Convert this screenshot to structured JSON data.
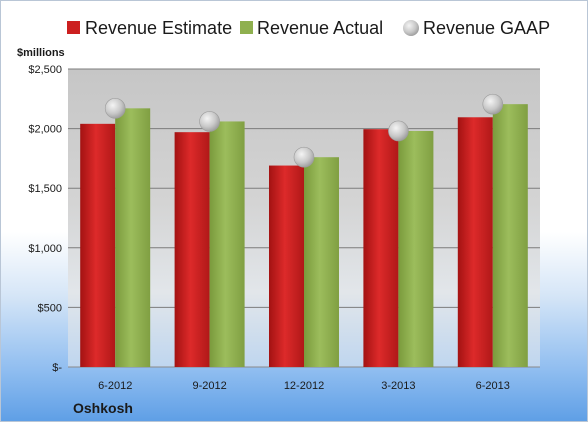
{
  "chart_data": {
    "type": "bar",
    "company": "Oshkosh",
    "ylabel": "$millions",
    "categories": [
      "6-2012",
      "9-2012",
      "12-2012",
      "3-2013",
      "6-2013"
    ],
    "y_tick_labels": [
      "$-",
      "$500",
      "$1,000",
      "$1,500",
      "$2,000",
      "$2,500"
    ],
    "ylim": [
      0,
      2500
    ],
    "grid": true,
    "legend_position": "top",
    "series": [
      {
        "name": "Revenue Estimate",
        "kind": "bar",
        "color": "#cc1f1f",
        "values": [
          2040,
          1970,
          1690,
          1995,
          2095
        ]
      },
      {
        "name": "Revenue Actual",
        "kind": "bar",
        "color": "#8fb04f",
        "values": [
          2170,
          2060,
          1760,
          1980,
          2205
        ]
      },
      {
        "name": "Revenue GAAP",
        "kind": "marker",
        "color": "#c8c8c8",
        "values": [
          2170,
          2060,
          1760,
          1980,
          2205
        ]
      }
    ]
  }
}
